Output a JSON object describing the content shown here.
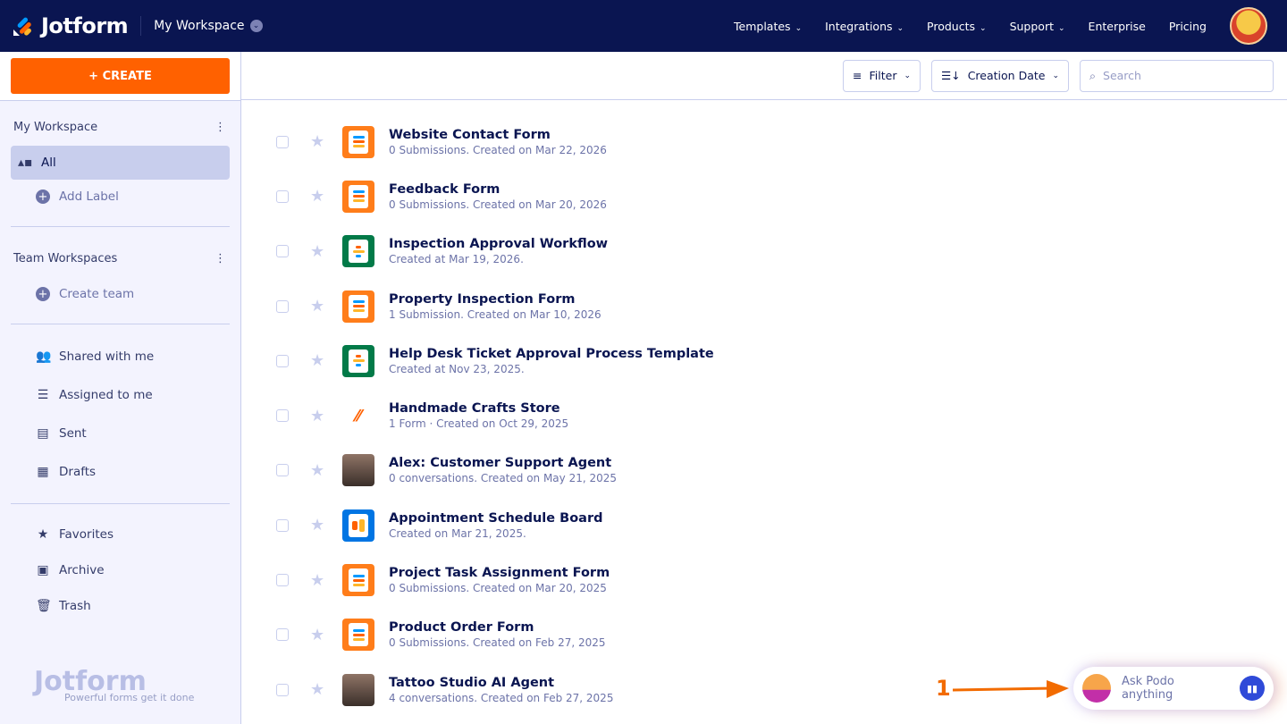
{
  "header": {
    "brand": "Jotform",
    "workspace": "My Workspace",
    "nav": [
      "Templates",
      "Integrations",
      "Products",
      "Support",
      "Enterprise",
      "Pricing"
    ]
  },
  "sidebar": {
    "create": "+ CREATE",
    "my_workspace": "My Workspace",
    "all": "All",
    "add_label": "Add Label",
    "team_workspaces": "Team Workspaces",
    "create_team": "Create team",
    "items": [
      {
        "label": "Shared with me",
        "icon": "users-icon"
      },
      {
        "label": "Assigned to me",
        "icon": "checklist-icon"
      },
      {
        "label": "Sent",
        "icon": "message-icon"
      },
      {
        "label": "Drafts",
        "icon": "draft-icon"
      }
    ],
    "items2": [
      {
        "label": "Favorites",
        "icon": "star-icon"
      },
      {
        "label": "Archive",
        "icon": "archive-icon"
      },
      {
        "label": "Trash",
        "icon": "trash-icon"
      }
    ],
    "footer_brand": "Jotform",
    "footer_tagline": "Powerful forms get it done"
  },
  "toolbar": {
    "filter": "Filter",
    "sort": "Creation Date",
    "search_placeholder": "Search"
  },
  "items": [
    {
      "title": "Website Contact Form",
      "sub": "0 Submissions. Created on Mar 22, 2026",
      "type": "form"
    },
    {
      "title": "Feedback Form",
      "sub": "0 Submissions. Created on Mar 20, 2026",
      "type": "form"
    },
    {
      "title": "Inspection Approval Workflow",
      "sub": "Created at Mar 19, 2026.",
      "type": "workflow"
    },
    {
      "title": "Property Inspection Form",
      "sub": "1 Submission. Created on Mar 10, 2026",
      "type": "form"
    },
    {
      "title": "Help Desk Ticket Approval Process Template",
      "sub": "Created at Nov 23, 2025.",
      "type": "workflow"
    },
    {
      "title": "Handmade Crafts Store",
      "sub": "1 Form · Created on Oct 29, 2025",
      "type": "app"
    },
    {
      "title": "Alex: Customer Support Agent",
      "sub": "0 conversations. Created on May 21, 2025",
      "type": "agent"
    },
    {
      "title": "Appointment Schedule Board",
      "sub": "Created on Mar 21, 2025.",
      "type": "board"
    },
    {
      "title": "Project Task Assignment Form",
      "sub": "0 Submissions. Created on Mar 20, 2025",
      "type": "form"
    },
    {
      "title": "Product Order Form",
      "sub": "0 Submissions. Created on Feb 27, 2025",
      "type": "form"
    },
    {
      "title": "Tattoo Studio AI Agent",
      "sub": "4 conversations. Created on Feb 27, 2025",
      "type": "agent"
    }
  ],
  "podo": {
    "placeholder": "Ask Podo anything"
  },
  "annotation": "1",
  "colors": {
    "header": "#0a1551",
    "create": "#ff6100",
    "sidebar": "#f3f3fe"
  }
}
